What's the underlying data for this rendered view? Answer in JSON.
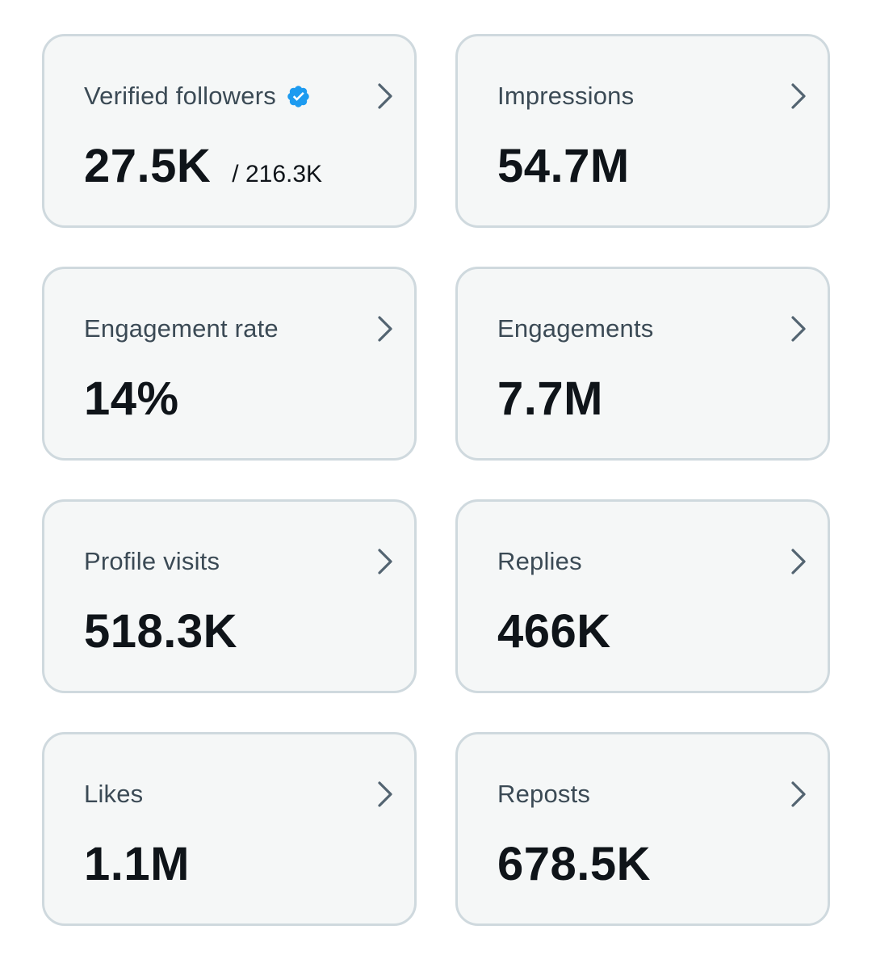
{
  "colors": {
    "card_background": "#f5f7f7",
    "card_border": "#cfd9de",
    "label_text": "#3b4a55",
    "value_text": "#0f1419",
    "chevron": "#536471",
    "verified_badge": "#1d9bf0"
  },
  "icons": {
    "verified": "verified-badge-icon",
    "chevron": "chevron-right-icon"
  },
  "metrics": [
    {
      "label": "Verified followers",
      "value": "27.5K",
      "total": "/ 216.3K",
      "verified": true
    },
    {
      "label": "Impressions",
      "value": "54.7M"
    },
    {
      "label": "Engagement rate",
      "value": "14%"
    },
    {
      "label": "Engagements",
      "value": "7.7M"
    },
    {
      "label": "Profile visits",
      "value": "518.3K"
    },
    {
      "label": "Replies",
      "value": "466K"
    },
    {
      "label": "Likes",
      "value": "1.1M"
    },
    {
      "label": "Reposts",
      "value": "678.5K"
    }
  ]
}
